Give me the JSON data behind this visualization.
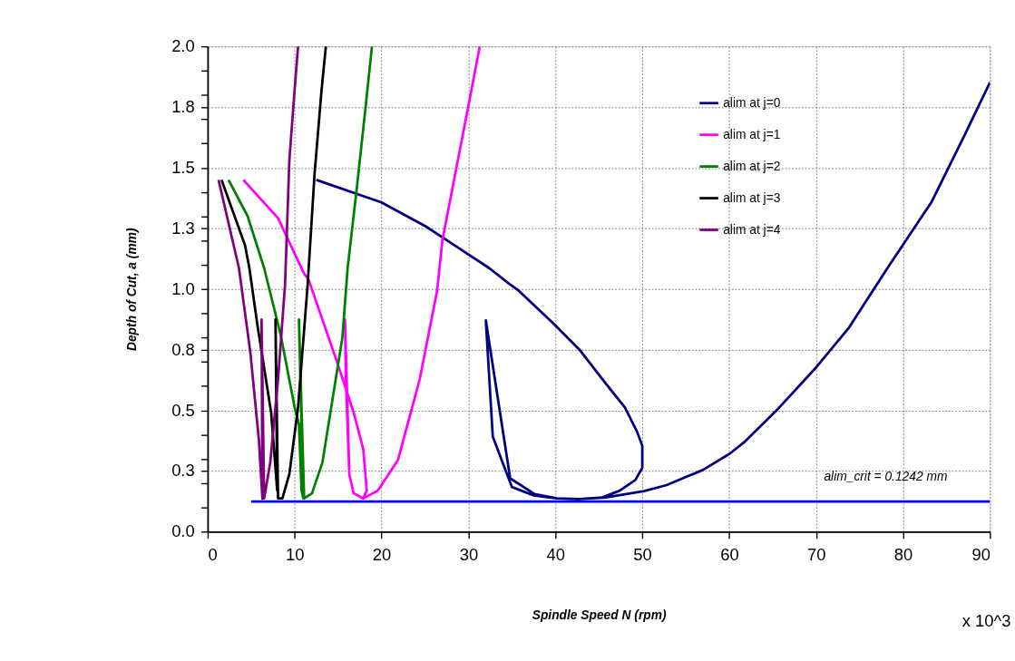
{
  "chart_data": {
    "type": "line",
    "xlabel": "Spindle Speed N (rpm)",
    "ylabel": "Depth of Cut, a (mm)",
    "xlim": [
      0,
      90
    ],
    "xticks": [
      0,
      10,
      20,
      30,
      40,
      50,
      60,
      70,
      80,
      90
    ],
    "ylim": [
      0,
      2.0
    ],
    "yticks": [
      {
        "value": 0,
        "label": "0.0"
      },
      {
        "value": 0.1,
        "label": null
      },
      {
        "value": 0.2,
        "label": null
      },
      {
        "value": 0.25,
        "label": "0.3"
      },
      {
        "value": 0.3,
        "label": null
      },
      {
        "value": 0.4,
        "label": null
      },
      {
        "value": 0.5,
        "label": "0.5"
      },
      {
        "value": 0.6,
        "label": null
      },
      {
        "value": 0.7,
        "label": null
      },
      {
        "value": 0.75,
        "label": "0.8"
      },
      {
        "value": 0.8,
        "label": null
      },
      {
        "value": 0.9,
        "label": null
      },
      {
        "value": 1.0,
        "label": "1.0"
      },
      {
        "value": 1.1,
        "label": null
      },
      {
        "value": 1.2,
        "label": null
      },
      {
        "value": 1.25,
        "label": "1.3"
      },
      {
        "value": 1.3,
        "label": null
      },
      {
        "value": 1.4,
        "label": null
      },
      {
        "value": 1.5,
        "label": "1.5"
      },
      {
        "value": 1.6,
        "label": null
      },
      {
        "value": 1.7,
        "label": null
      },
      {
        "value": 1.75,
        "label": "1.8"
      },
      {
        "value": 1.8,
        "label": null
      },
      {
        "value": 1.9,
        "label": null
      },
      {
        "value": 2.0,
        "label": "2.0"
      }
    ],
    "grid": true,
    "legend": "top right",
    "marker": "none",
    "line_style": "solid",
    "series": [
      {
        "name": "alim at j=0",
        "color": "#000080",
        "x": [
          12.5,
          20,
          25.1,
          32.4,
          34.6,
          35.8,
          39.8,
          42.8,
          45.4,
          48,
          49.4,
          50.0,
          50.0,
          49.2,
          47.4,
          45.4,
          42.8,
          40.2,
          37.6,
          35.0,
          32.8,
          32.0,
          34.8,
          37.6,
          40.2,
          42.8,
          45.8,
          50.2,
          52.8,
          57.0,
          60,
          61.8,
          65.4,
          70,
          73.8,
          78.2,
          83.3,
          87.1,
          90
        ],
        "values": [
          1.45,
          1.357,
          1.258,
          1.086,
          1.024,
          0.993,
          0.857,
          0.749,
          0.629,
          0.512,
          0.412,
          0.354,
          0.263,
          0.213,
          0.169,
          0.141,
          0.134,
          0.137,
          0.148,
          0.184,
          0.392,
          0.871,
          0.22,
          0.155,
          0.137,
          0.134,
          0.141,
          0.167,
          0.192,
          0.255,
          0.32,
          0.371,
          0.498,
          0.677,
          0.842,
          1.086,
          1.36,
          1.636,
          1.852
        ]
      },
      {
        "name": "alim at j=1",
        "color": "#ff00ff",
        "x": [
          4.1,
          8.1,
          11.1,
          11.6,
          14.8,
          16.8,
          17.9,
          18.3,
          17.9,
          16.8,
          16.3,
          15.9,
          15.8,
          16.3,
          16.8,
          17.9,
          19.6,
          21.9,
          24.4,
          26.4,
          27,
          30,
          31.3
        ],
        "values": [
          1.45,
          1.292,
          1.063,
          1.04,
          0.708,
          0.491,
          0.34,
          0.17,
          0.137,
          0.158,
          0.234,
          0.629,
          0.874,
          0.234,
          0.158,
          0.137,
          0.17,
          0.296,
          0.629,
          0.994,
          1.2,
          1.756,
          2.0
        ]
      },
      {
        "name": "alim at j=2",
        "color": "#008000",
        "x": [
          2.4,
          4.6,
          6.5,
          8.4,
          10.0,
          10.5,
          10.8,
          11.0,
          10.5,
          11.1,
          12.0,
          13.2,
          15.5,
          16.1,
          17.2,
          18.2,
          18.9
        ],
        "values": [
          1.45,
          1.3,
          1.086,
          0.811,
          0.513,
          0.444,
          0.17,
          0.137,
          0.874,
          0.137,
          0.158,
          0.285,
          0.8,
          1.086,
          1.43,
          1.76,
          2.0
        ]
      },
      {
        "name": "alim at j=3",
        "color": "#000000",
        "x": [
          1.6,
          4.3,
          4.8,
          5.7,
          7.3,
          8.0,
          7.8,
          8.1,
          8.6,
          9.4,
          10.4,
          11.5,
          12.3,
          13.1,
          13.6
        ],
        "values": [
          1.45,
          1.18,
          1.086,
          0.857,
          0.491,
          0.17,
          0.874,
          0.137,
          0.137,
          0.238,
          0.513,
          1.017,
          1.475,
          1.82,
          2.0
        ]
      },
      {
        "name": "alim at j=4",
        "color": "#800080",
        "x": [
          1.25,
          3.6,
          4.9,
          5.9,
          6.3,
          6.2,
          6.5,
          7.2,
          8.1,
          8.9,
          9.4,
          10.0,
          10.4
        ],
        "values": [
          1.45,
          1.086,
          0.742,
          0.376,
          0.135,
          0.874,
          0.137,
          0.285,
          0.629,
          1.017,
          1.533,
          1.82,
          2.0
        ]
      },
      {
        "color": "#0000ff",
        "x": [
          5,
          90
        ],
        "values": [
          0.1242,
          0.1242
        ]
      }
    ],
    "annotations": [
      {
        "text": "alim_crit = 0.1242 mm",
        "x": 78,
        "y": 0.1242
      },
      "x 10^3"
    ]
  }
}
